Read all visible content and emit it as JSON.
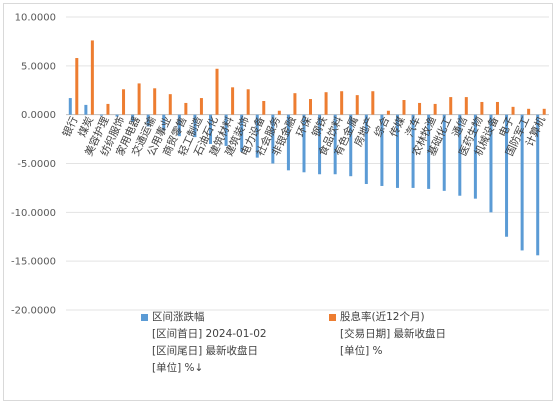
{
  "chart_data": {
    "type": "bar",
    "categories": [
      "银行",
      "煤炭",
      "美容护理",
      "纺织服饰",
      "家用电器",
      "交通运输",
      "公用事业",
      "商贸零售",
      "轻工制造",
      "石油石化",
      "建筑材料",
      "建筑装饰",
      "电力设备",
      "社会服务",
      "非银金融",
      "环保",
      "钢铁",
      "食品饮料",
      "有色金属",
      "房地产",
      "综合",
      "传媒",
      "汽车",
      "农林牧渔",
      "基础化工",
      "通信",
      "医药生物",
      "机械设备",
      "电子",
      "国防军工",
      "计算机"
    ],
    "series": [
      {
        "name": "区间涨跌幅",
        "color": "#5b9bd5",
        "values": [
          1.7,
          1.0,
          -0.1,
          -0.2,
          -0.7,
          -1.2,
          -1.6,
          -2.2,
          -2.3,
          -3.0,
          -3.2,
          -3.8,
          -4.4,
          -5.0,
          -5.7,
          -5.9,
          -6.1,
          -6.1,
          -6.3,
          -7.1,
          -7.3,
          -7.5,
          -7.5,
          -7.6,
          -7.8,
          -8.3,
          -8.6,
          -10.0,
          -12.5,
          -13.9,
          -14.4
        ]
      },
      {
        "name": "股息率(近12个月)",
        "color": "#ed7d31",
        "values": [
          5.8,
          7.6,
          1.1,
          2.6,
          3.2,
          2.7,
          2.1,
          1.2,
          1.7,
          4.7,
          2.8,
          2.6,
          1.4,
          0.4,
          2.2,
          1.6,
          2.3,
          2.4,
          2.0,
          2.4,
          0.4,
          1.5,
          1.2,
          1.1,
          1.8,
          1.8,
          1.3,
          1.3,
          0.8,
          0.6,
          0.6
        ]
      }
    ],
    "ylim": [
      -20,
      10
    ],
    "yticks": [
      "10.0000",
      "5.0000",
      "0.0000",
      "-5.0000",
      "-10.0000",
      "-15.0000",
      "-20.0000"
    ],
    "grid": true,
    "legend": [
      {
        "label": "区间涨跌幅",
        "color": "#5b9bd5",
        "lines": [
          "[区间首日] 2024-01-02",
          "[区间尾日] 最新收盘日",
          "[单位] %↓"
        ]
      },
      {
        "label": "股息率(近12个月)",
        "color": "#ed7d31",
        "lines": [
          "[交易日期] 最新收盘日",
          "[单位] %"
        ]
      }
    ],
    "legend_position": "bottom"
  }
}
